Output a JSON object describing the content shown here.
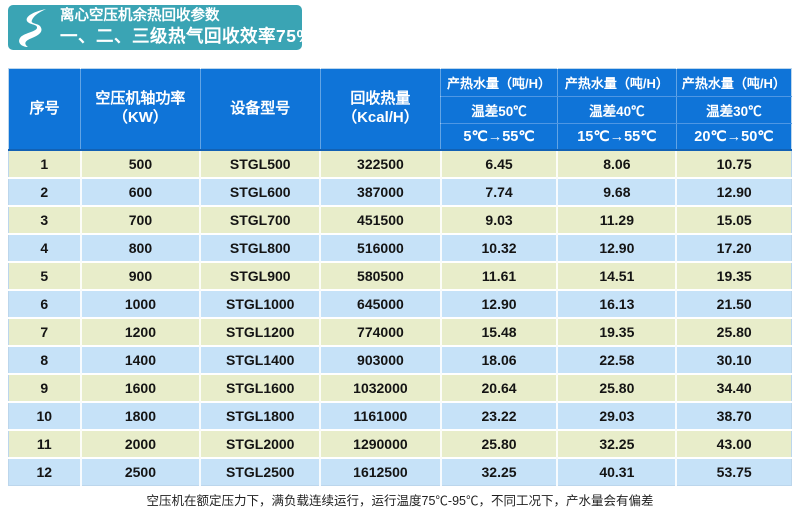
{
  "badge": {
    "line1": "离心空压机余热回收参数",
    "line2": "一、二、三级热气回收效率75%"
  },
  "colors": {
    "brand_teal": "#3aa4b4",
    "table_header_blue": "#0f74d8",
    "row_green": "#e8edca",
    "row_blue": "#c6e2f8"
  },
  "icons": {
    "brand_logo": "s-swoosh-icon"
  },
  "table": {
    "columns": [
      "序号",
      "空压机轴功率\n（KW）",
      "设备型号",
      "回收热量\n（Kcal/H）"
    ],
    "water_header": "产热水量（吨/H）",
    "water_cols": [
      {
        "temp_diff": "温差50℃",
        "range": "5℃→55℃"
      },
      {
        "temp_diff": "温差40℃",
        "range": "15℃→55℃"
      },
      {
        "temp_diff": "温差30℃",
        "range": "20℃→50℃"
      }
    ],
    "col_keys": [
      "index",
      "shaft-power-kw",
      "model",
      "heat-kcal-h",
      "water-50c",
      "water-40c",
      "water-30c"
    ],
    "rows": [
      [
        "1",
        "500",
        "STGL500",
        "322500",
        "6.45",
        "8.06",
        "10.75"
      ],
      [
        "2",
        "600",
        "STGL600",
        "387000",
        "7.74",
        "9.68",
        "12.90"
      ],
      [
        "3",
        "700",
        "STGL700",
        "451500",
        "9.03",
        "11.29",
        "15.05"
      ],
      [
        "4",
        "800",
        "STGL800",
        "516000",
        "10.32",
        "12.90",
        "17.20"
      ],
      [
        "5",
        "900",
        "STGL900",
        "580500",
        "11.61",
        "14.51",
        "19.35"
      ],
      [
        "6",
        "1000",
        "STGL1000",
        "645000",
        "12.90",
        "16.13",
        "21.50"
      ],
      [
        "7",
        "1200",
        "STGL1200",
        "774000",
        "15.48",
        "19.35",
        "25.80"
      ],
      [
        "8",
        "1400",
        "STGL1400",
        "903000",
        "18.06",
        "22.58",
        "30.10"
      ],
      [
        "9",
        "1600",
        "STGL1600",
        "1032000",
        "20.64",
        "25.80",
        "34.40"
      ],
      [
        "10",
        "1800",
        "STGL1800",
        "1161000",
        "23.22",
        "29.03",
        "38.70"
      ],
      [
        "11",
        "2000",
        "STGL2000",
        "1290000",
        "25.80",
        "32.25",
        "43.00"
      ],
      [
        "12",
        "2500",
        "STGL2500",
        "1612500",
        "32.25",
        "40.31",
        "53.75"
      ]
    ]
  },
  "footer": {
    "note": "空压机在额定压力下，满负载连续运行，运行温度75℃-95℃，不同工况下，产水量会有偏差"
  }
}
